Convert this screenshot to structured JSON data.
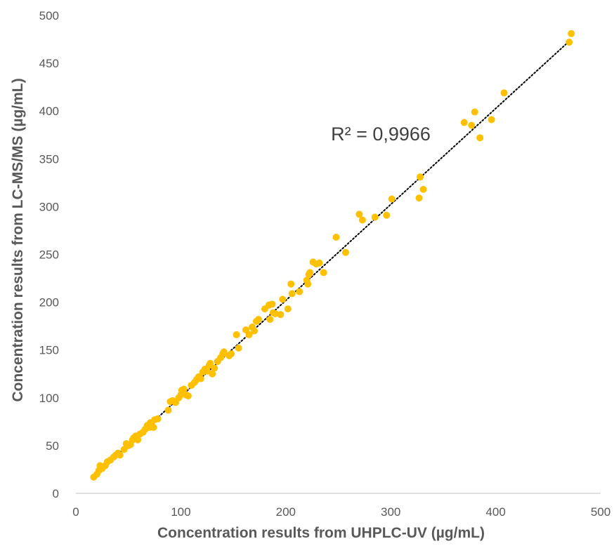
{
  "chart_data": {
    "type": "scatter",
    "title": "",
    "xlabel": "Concentration results from UHPLC-UV (µg/mL)",
    "ylabel": "Concentration results from LC-MS/MS (µg/mL)",
    "xlim": [
      0,
      500
    ],
    "ylim": [
      0,
      500
    ],
    "xticks": [
      "0",
      "100",
      "200",
      "300",
      "400",
      "500"
    ],
    "yticks": [
      "0",
      "50",
      "100",
      "150",
      "200",
      "250",
      "300",
      "350",
      "400",
      "450",
      "500"
    ],
    "grid": false,
    "legend": "none",
    "annotation": "R² = 0,9966",
    "trendline": {
      "style": "dotted",
      "color": "#000000",
      "from": [
        17,
        18
      ],
      "to": [
        471,
        474
      ]
    },
    "point_color": "#FFC000",
    "points": [
      [
        17,
        17
      ],
      [
        20,
        20
      ],
      [
        22,
        24
      ],
      [
        23,
        29
      ],
      [
        25,
        26
      ],
      [
        28,
        29
      ],
      [
        30,
        33
      ],
      [
        33,
        35
      ],
      [
        36,
        38
      ],
      [
        38,
        40
      ],
      [
        40,
        42
      ],
      [
        42,
        40
      ],
      [
        46,
        46
      ],
      [
        48,
        52
      ],
      [
        50,
        50
      ],
      [
        52,
        51
      ],
      [
        54,
        56
      ],
      [
        55,
        58
      ],
      [
        57,
        60
      ],
      [
        59,
        56
      ],
      [
        61,
        62
      ],
      [
        64,
        64
      ],
      [
        66,
        67
      ],
      [
        68,
        71
      ],
      [
        70,
        69
      ],
      [
        71,
        74
      ],
      [
        72,
        72
      ],
      [
        74,
        69
      ],
      [
        75,
        77
      ],
      [
        78,
        78
      ],
      [
        88,
        87
      ],
      [
        90,
        96
      ],
      [
        92,
        97
      ],
      [
        95,
        95
      ],
      [
        98,
        100
      ],
      [
        100,
        103
      ],
      [
        101,
        108
      ],
      [
        103,
        109
      ],
      [
        105,
        103
      ],
      [
        107,
        102
      ],
      [
        110,
        113
      ],
      [
        113,
        116
      ],
      [
        115,
        119
      ],
      [
        117,
        122
      ],
      [
        119,
        120
      ],
      [
        121,
        127
      ],
      [
        123,
        130
      ],
      [
        125,
        128
      ],
      [
        127,
        134
      ],
      [
        128,
        136
      ],
      [
        130,
        125
      ],
      [
        132,
        131
      ],
      [
        135,
        138
      ],
      [
        138,
        142
      ],
      [
        140,
        146
      ],
      [
        141,
        148
      ],
      [
        146,
        144
      ],
      [
        148,
        146
      ],
      [
        153,
        166
      ],
      [
        155,
        152
      ],
      [
        162,
        171
      ],
      [
        165,
        166
      ],
      [
        168,
        174
      ],
      [
        170,
        170
      ],
      [
        172,
        180
      ],
      [
        174,
        182
      ],
      [
        180,
        193
      ],
      [
        184,
        197
      ],
      [
        185,
        182
      ],
      [
        187,
        198
      ],
      [
        188,
        189
      ],
      [
        190,
        188
      ],
      [
        195,
        187
      ],
      [
        197,
        203
      ],
      [
        202,
        193
      ],
      [
        205,
        219
      ],
      [
        206,
        209
      ],
      [
        213,
        211
      ],
      [
        220,
        223
      ],
      [
        221,
        219
      ],
      [
        222,
        229
      ],
      [
        223,
        231
      ],
      [
        226,
        242
      ],
      [
        229,
        240
      ],
      [
        232,
        241
      ],
      [
        236,
        231
      ],
      [
        248,
        268
      ],
      [
        257,
        252
      ],
      [
        270,
        292
      ],
      [
        273,
        286
      ],
      [
        285,
        289
      ],
      [
        296,
        291
      ],
      [
        301,
        308
      ],
      [
        327,
        309
      ],
      [
        328,
        331
      ],
      [
        331,
        318
      ],
      [
        370,
        388
      ],
      [
        377,
        385
      ],
      [
        380,
        399
      ],
      [
        385,
        372
      ],
      [
        396,
        391
      ],
      [
        408,
        419
      ],
      [
        470,
        472
      ],
      [
        472,
        481
      ]
    ]
  }
}
